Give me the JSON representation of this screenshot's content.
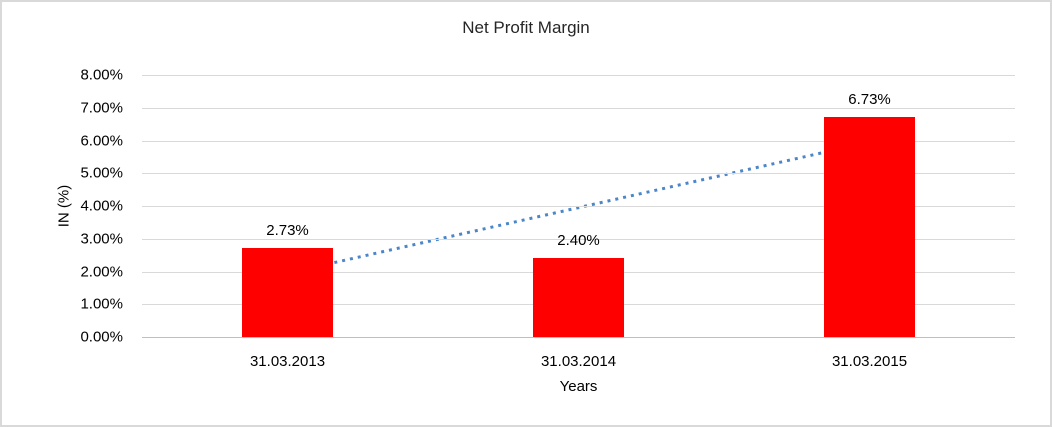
{
  "chart": {
    "title": "Net Profit Margin",
    "y_axis_title": "IN (%)",
    "x_axis_title": "Years"
  },
  "chart_data": {
    "type": "bar",
    "title": "Net Profit Margin",
    "categories": [
      "31.03.2013",
      "31.03.2014",
      "31.03.2015"
    ],
    "values": [
      2.73,
      2.4,
      6.73
    ],
    "data_labels": [
      "2.73%",
      "2.40%",
      "6.73%"
    ],
    "xlabel": "Years",
    "ylabel": "IN (%)",
    "ylim": [
      0,
      8
    ],
    "y_tick_labels": [
      "8.00%",
      "7.00%",
      "6.00%",
      "5.00%",
      "4.00%",
      "3.00%",
      "2.00%",
      "1.00%",
      "0.00%"
    ],
    "grid": true,
    "legend": false,
    "bar_color": "#FF0000",
    "gridline_color": "#D9D9D9",
    "axis_line_color": "#BFBFBF",
    "trendline": {
      "type": "linear",
      "style": "dotted",
      "color": "#4A86C8",
      "start_value": 1.95,
      "end_value": 5.95
    }
  }
}
